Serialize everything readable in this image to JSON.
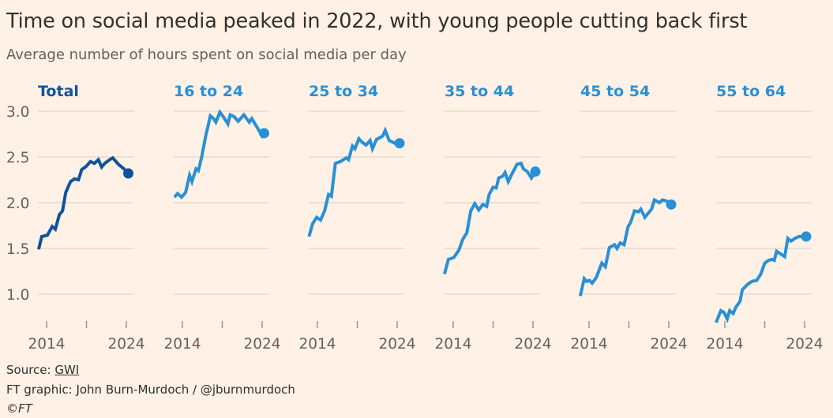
{
  "title": "Time on social media peaked in 2022, with young people cutting back first",
  "subtitle": "Average number of hours spent on social media per day",
  "footer": {
    "source_label": "Source: ",
    "source_link": "GWI",
    "credit": "FT graphic: John Burn-Murdoch / @jburnmurdoch",
    "copyright": "©FT"
  },
  "colors": {
    "background": "#fff1e5",
    "total": "#0f5499",
    "age_groups": "#2990d6",
    "grid": "#e6d9ce",
    "text": "#33302e"
  },
  "chart_data": {
    "type": "line",
    "layout": "small-multiples",
    "y_ticks": [
      "3.0",
      "2.5",
      "2.0",
      "1.5",
      "1.0"
    ],
    "ylim": [
      0.7,
      3.0
    ],
    "x_tick_labels": [
      "2014",
      "2024"
    ],
    "x_ticks": [
      2014,
      2019,
      2024
    ],
    "xlim": [
      2013,
      2024.3
    ],
    "grid": true,
    "end_marker": "dot",
    "panels": [
      {
        "name": "Total",
        "color": "#0f5499",
        "points": [
          [
            2013.0,
            1.49
          ],
          [
            2013.4,
            1.63
          ],
          [
            2014.1,
            1.645
          ],
          [
            2014.7,
            1.74
          ],
          [
            2015.1,
            1.71
          ],
          [
            2015.6,
            1.87
          ],
          [
            2016.0,
            1.91
          ],
          [
            2016.4,
            2.11
          ],
          [
            2017.0,
            2.23
          ],
          [
            2017.5,
            2.26
          ],
          [
            2018.0,
            2.25
          ],
          [
            2018.4,
            2.36
          ],
          [
            2019.0,
            2.4
          ],
          [
            2019.5,
            2.45
          ],
          [
            2020.0,
            2.43
          ],
          [
            2020.5,
            2.47
          ],
          [
            2020.9,
            2.39
          ],
          [
            2021.3,
            2.43
          ],
          [
            2021.9,
            2.47
          ],
          [
            2022.3,
            2.49
          ],
          [
            2023.0,
            2.42
          ],
          [
            2023.7,
            2.37
          ],
          [
            2024.25,
            2.32
          ]
        ]
      },
      {
        "name": "16 to 24",
        "color": "#2990d6",
        "points": [
          [
            2013.0,
            2.06
          ],
          [
            2013.4,
            2.1
          ],
          [
            2013.9,
            2.06
          ],
          [
            2014.4,
            2.11
          ],
          [
            2014.9,
            2.3
          ],
          [
            2015.2,
            2.23
          ],
          [
            2015.7,
            2.37
          ],
          [
            2016.0,
            2.35
          ],
          [
            2016.4,
            2.49
          ],
          [
            2016.9,
            2.72
          ],
          [
            2017.5,
            2.95
          ],
          [
            2017.9,
            2.92
          ],
          [
            2018.2,
            2.88
          ],
          [
            2018.7,
            2.99
          ],
          [
            2019.2,
            2.93
          ],
          [
            2019.7,
            2.86
          ],
          [
            2020.0,
            2.96
          ],
          [
            2020.5,
            2.94
          ],
          [
            2021.0,
            2.89
          ],
          [
            2021.7,
            2.96
          ],
          [
            2022.4,
            2.88
          ],
          [
            2022.7,
            2.92
          ],
          [
            2023.4,
            2.82
          ],
          [
            2024.0,
            2.73
          ],
          [
            2024.25,
            2.76
          ]
        ]
      },
      {
        "name": "25 to 34",
        "color": "#2990d6",
        "points": [
          [
            2012.95,
            1.63
          ],
          [
            2013.4,
            1.77
          ],
          [
            2013.9,
            1.84
          ],
          [
            2014.4,
            1.81
          ],
          [
            2014.9,
            1.91
          ],
          [
            2015.4,
            2.09
          ],
          [
            2015.75,
            2.07
          ],
          [
            2016.25,
            2.43
          ],
          [
            2016.9,
            2.45
          ],
          [
            2017.6,
            2.49
          ],
          [
            2017.9,
            2.47
          ],
          [
            2018.4,
            2.62
          ],
          [
            2018.7,
            2.59
          ],
          [
            2019.2,
            2.7
          ],
          [
            2019.6,
            2.66
          ],
          [
            2020.1,
            2.63
          ],
          [
            2020.6,
            2.68
          ],
          [
            2020.9,
            2.59
          ],
          [
            2021.4,
            2.69
          ],
          [
            2022.2,
            2.73
          ],
          [
            2022.5,
            2.79
          ],
          [
            2023.0,
            2.68
          ],
          [
            2023.7,
            2.65
          ],
          [
            2024.3,
            2.65
          ]
        ]
      },
      {
        "name": "35 to 44",
        "color": "#2990d6",
        "points": [
          [
            2012.9,
            1.22
          ],
          [
            2013.4,
            1.38
          ],
          [
            2014.07,
            1.4
          ],
          [
            2014.7,
            1.48
          ],
          [
            2015.2,
            1.6
          ],
          [
            2015.7,
            1.67
          ],
          [
            2016.2,
            1.91
          ],
          [
            2016.7,
            1.99
          ],
          [
            2017.2,
            1.92
          ],
          [
            2017.7,
            1.98
          ],
          [
            2018.2,
            1.96
          ],
          [
            2018.5,
            2.09
          ],
          [
            2019.0,
            2.17
          ],
          [
            2019.4,
            2.16
          ],
          [
            2019.7,
            2.27
          ],
          [
            2020.2,
            2.29
          ],
          [
            2020.5,
            2.33
          ],
          [
            2020.9,
            2.23
          ],
          [
            2021.4,
            2.32
          ],
          [
            2022.0,
            2.42
          ],
          [
            2022.5,
            2.43
          ],
          [
            2022.8,
            2.37
          ],
          [
            2023.3,
            2.34
          ],
          [
            2023.8,
            2.27
          ],
          [
            2024.3,
            2.34
          ]
        ]
      },
      {
        "name": "45 to 54",
        "color": "#2990d6",
        "points": [
          [
            2012.9,
            0.98
          ],
          [
            2013.4,
            1.17
          ],
          [
            2013.7,
            1.14
          ],
          [
            2014.07,
            1.15
          ],
          [
            2014.4,
            1.12
          ],
          [
            2014.9,
            1.18
          ],
          [
            2015.6,
            1.34
          ],
          [
            2016.05,
            1.3
          ],
          [
            2016.55,
            1.51
          ],
          [
            2017.2,
            1.54
          ],
          [
            2017.5,
            1.5
          ],
          [
            2017.9,
            1.56
          ],
          [
            2018.4,
            1.54
          ],
          [
            2018.9,
            1.74
          ],
          [
            2019.2,
            1.78
          ],
          [
            2019.7,
            1.91
          ],
          [
            2020.2,
            1.9
          ],
          [
            2020.5,
            1.93
          ],
          [
            2021.0,
            1.84
          ],
          [
            2021.85,
            1.93
          ],
          [
            2022.2,
            2.03
          ],
          [
            2022.85,
            2.0
          ],
          [
            2023.2,
            2.03
          ],
          [
            2023.7,
            2.02
          ],
          [
            2024.3,
            1.98
          ]
        ]
      },
      {
        "name": "55 to 64",
        "color": "#2990d6",
        "points": [
          [
            2012.9,
            0.69
          ],
          [
            2013.5,
            0.82
          ],
          [
            2013.9,
            0.8
          ],
          [
            2014.3,
            0.73
          ],
          [
            2014.6,
            0.82
          ],
          [
            2015.05,
            0.79
          ],
          [
            2015.4,
            0.86
          ],
          [
            2015.9,
            0.92
          ],
          [
            2016.2,
            1.05
          ],
          [
            2016.9,
            1.11
          ],
          [
            2017.4,
            1.14
          ],
          [
            2018.0,
            1.15
          ],
          [
            2018.5,
            1.22
          ],
          [
            2019.0,
            1.34
          ],
          [
            2019.5,
            1.37
          ],
          [
            2019.9,
            1.38
          ],
          [
            2020.2,
            1.37
          ],
          [
            2020.5,
            1.47
          ],
          [
            2021.0,
            1.44
          ],
          [
            2021.5,
            1.41
          ],
          [
            2021.9,
            1.61
          ],
          [
            2022.3,
            1.58
          ],
          [
            2022.8,
            1.61
          ],
          [
            2023.3,
            1.63
          ],
          [
            2024.2,
            1.63
          ]
        ]
      }
    ]
  }
}
